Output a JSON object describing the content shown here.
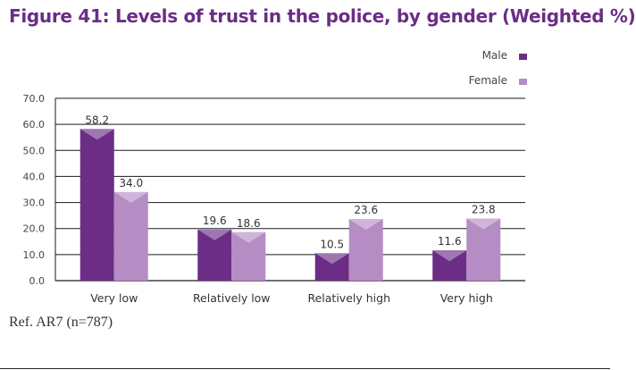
{
  "chart_data": {
    "type": "bar",
    "title": "Figure 41: Levels of trust in the police, by gender (Weighted %)",
    "categories": [
      "Very low",
      "Relatively low",
      "Relatively high",
      "Very high"
    ],
    "series": [
      {
        "name": "Male",
        "values": [
          58.2,
          19.6,
          10.5,
          11.6
        ],
        "color": "#6b2d86"
      },
      {
        "name": "Female",
        "values": [
          34.0,
          18.6,
          23.6,
          23.8
        ],
        "color": "#b58dc4"
      }
    ],
    "ylim": [
      0,
      70
    ],
    "yticks": [
      "0.0",
      "10.0",
      "20.0",
      "30.0",
      "40.0",
      "50.0",
      "60.0",
      "70.0"
    ],
    "value_labels": [
      [
        "58.2",
        "19.6",
        "10.5",
        "11.6"
      ],
      [
        "34.0",
        "18.6",
        "23.6",
        "23.8"
      ]
    ],
    "grid": true,
    "legend": "top-right"
  },
  "footnote": "Ref. AR7 (n=787)"
}
